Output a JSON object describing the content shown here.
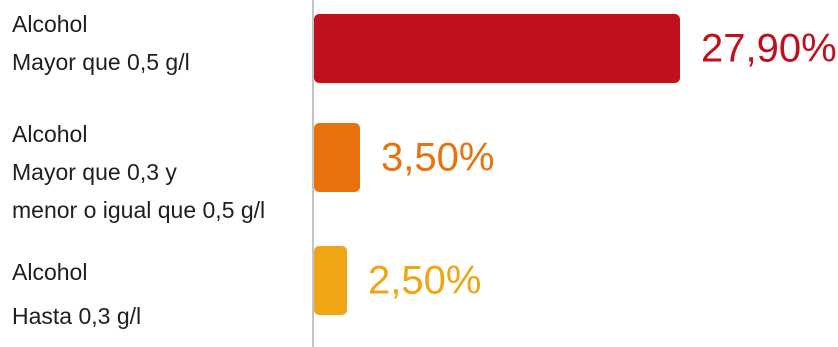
{
  "chart_data": {
    "type": "bar",
    "orientation": "horizontal",
    "categories": [
      [
        "Alcohol",
        "Mayor que 0,5 g/l"
      ],
      [
        "Alcohol",
        "Mayor que 0,3 y",
        "menor o igual que 0,5 g/l"
      ],
      [
        "Alcohol",
        "Hasta 0,3 g/l"
      ]
    ],
    "values": [
      27.9,
      3.5,
      2.5
    ],
    "value_labels": [
      "27,90%",
      "3,50%",
      "2,50%"
    ],
    "colors": [
      "#c0101d",
      "#e8730e",
      "#f0a614"
    ],
    "title": "",
    "xlabel": "",
    "ylabel": "",
    "grid": false,
    "legend": "none"
  }
}
